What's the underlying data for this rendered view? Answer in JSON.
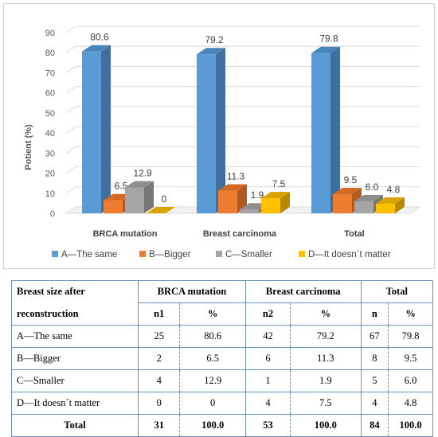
{
  "chart_data": {
    "type": "bar",
    "style": "3d-clustered",
    "ylabel": "Potient (%)",
    "ylim": [
      0,
      90
    ],
    "yticks": [
      0,
      10,
      20,
      30,
      40,
      50,
      60,
      70,
      80,
      90
    ],
    "grid": true,
    "legend_position": "bottom",
    "categories": [
      "BRCA mutation",
      "Breast carcinoma",
      "Total"
    ],
    "series": [
      {
        "name": "A—The same",
        "values": [
          80.6,
          79.2,
          79.8
        ],
        "labels": [
          "80.6",
          "79.2",
          "79.8"
        ],
        "color": "#5b9bd5",
        "dark": "#3e6f9e",
        "top": "#4a84bb"
      },
      {
        "name": "B—Bigger",
        "values": [
          6.5,
          11.3,
          9.5
        ],
        "labels": [
          "6.5",
          "11.3",
          "9.5"
        ],
        "color": "#ed7d31",
        "dark": "#b3591d",
        "top": "#d46a22"
      },
      {
        "name": "C—Smaller",
        "values": [
          12.9,
          1.9,
          6.0
        ],
        "labels": [
          "12.9",
          "1.9",
          "6.0"
        ],
        "color": "#a5a5a5",
        "dark": "#767676",
        "top": "#8e8e8e"
      },
      {
        "name": "D—It doesn´t matter",
        "values": [
          0,
          7.5,
          4.8
        ],
        "labels": [
          "0",
          "7.5",
          "4.8"
        ],
        "color": "#ffc000",
        "dark": "#b88a00",
        "top": "#d9a300"
      }
    ]
  },
  "table": {
    "header1": {
      "col1a": "Breast size after",
      "col1b": "reconstruction",
      "g1": "BRCA mutation",
      "g2": "Breast carcinoma",
      "g3": "Total"
    },
    "header2": [
      "n1",
      "%",
      "n2",
      "%",
      "n",
      "%"
    ],
    "rows": [
      {
        "label": "A—The same",
        "cells": [
          "25",
          "80.6",
          "42",
          "79.2",
          "67",
          "79.8"
        ]
      },
      {
        "label": "B—Bigger",
        "cells": [
          "2",
          "6.5",
          "6",
          "11.3",
          "8",
          "9.5"
        ]
      },
      {
        "label": "C—Smaller",
        "cells": [
          "4",
          "12.9",
          "1",
          "1.9",
          "5",
          "6.0"
        ]
      },
      {
        "label": "D—It doesn´t matter",
        "cells": [
          "0",
          "0",
          "4",
          "7.5",
          "4",
          "4.8"
        ]
      }
    ],
    "total": {
      "label": "Total",
      "cells": [
        "31",
        "100.0",
        "53",
        "100.0",
        "84",
        "100.0"
      ]
    }
  }
}
